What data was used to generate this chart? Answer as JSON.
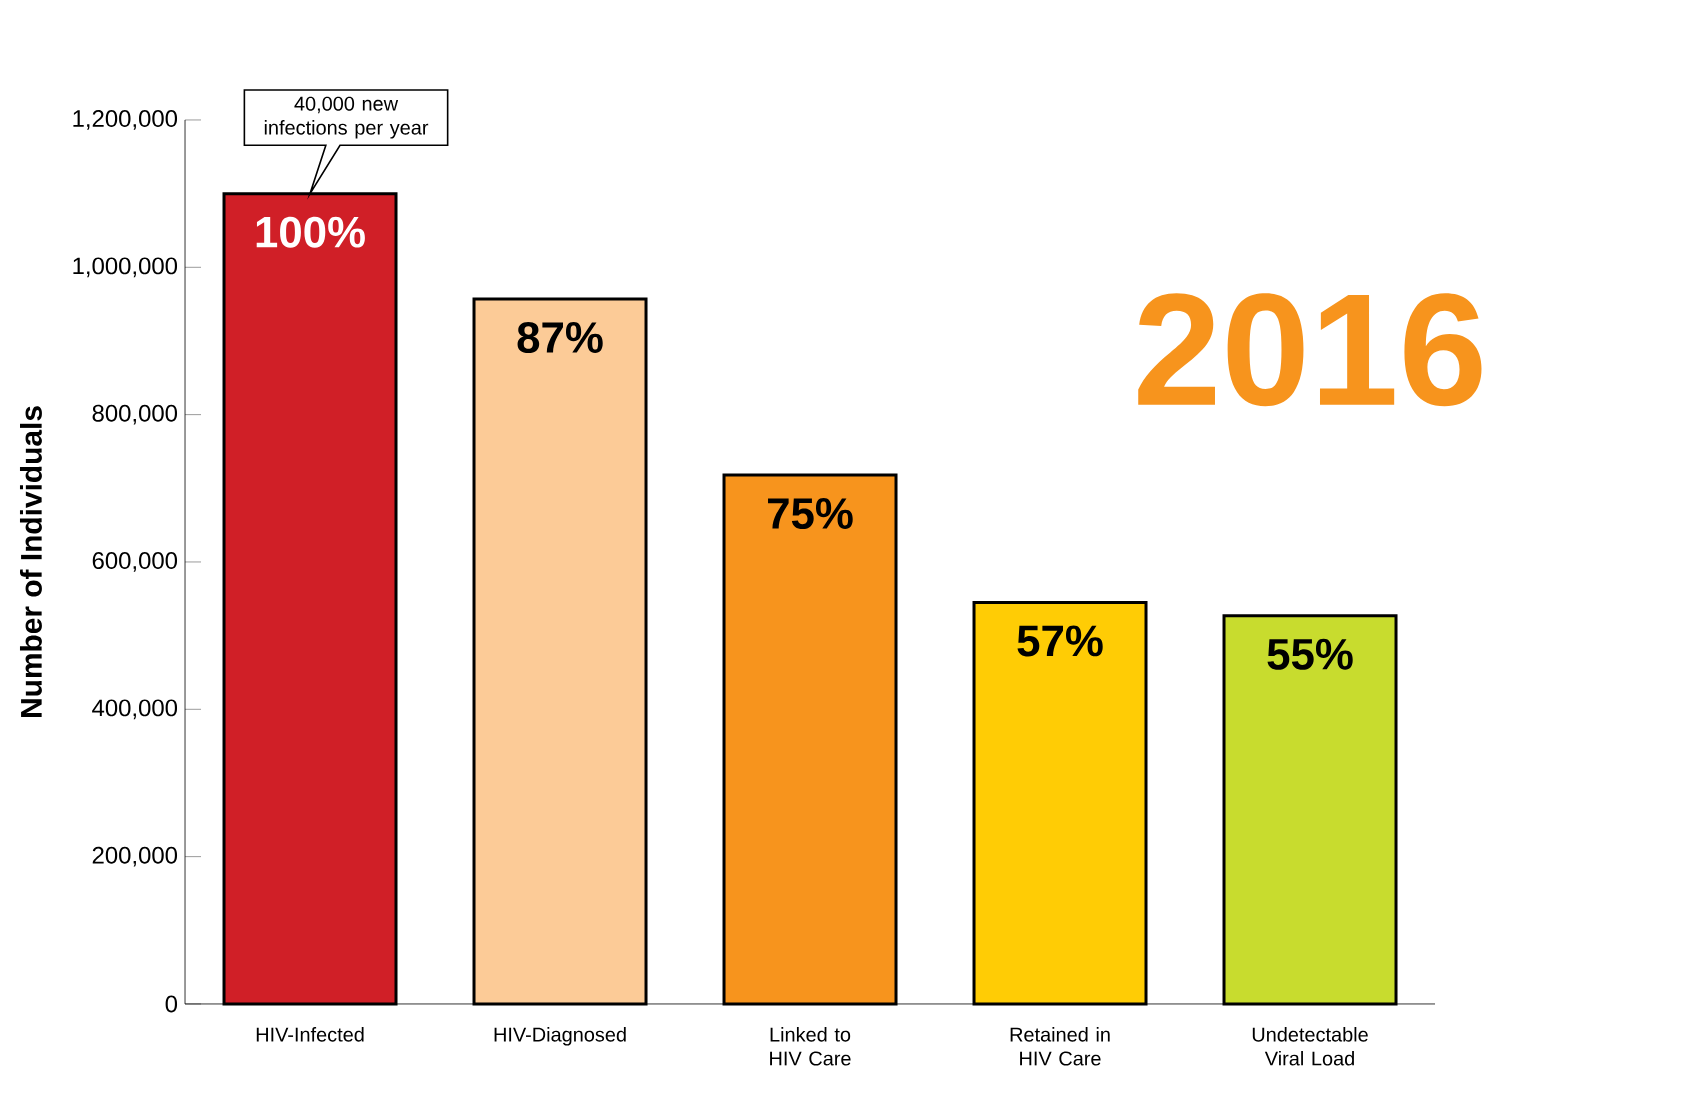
{
  "chart_data": {
    "type": "bar",
    "title": "2016",
    "ylabel": "Number of Individuals",
    "categories": [
      "HIV-Infected",
      "HIV-Diagnosed",
      "Linked to HIV Care",
      "Retained in HIV Care",
      "Undetectable Viral Load"
    ],
    "values": [
      1100000,
      957000,
      718000,
      545000,
      527000
    ],
    "colors": [
      "#d01f27",
      "#fccb97",
      "#f7941d",
      "#ffcc05",
      "#c8dc2e"
    ],
    "ylim": [
      0,
      1200000
    ],
    "yticks": [
      0,
      {
        "value": 200000,
        "label": "200,000"
      },
      {
        "value": 400000,
        "label": "400,000"
      },
      {
        "value": 600000,
        "label": "600,000"
      },
      {
        "value": 800000,
        "label": "800,000"
      },
      {
        "value": 1000000,
        "label": "1,000,000"
      },
      {
        "value": 1200000,
        "label": "1,200,000"
      }
    ],
    "annotations": [
      {
        "text": "40,000 new infections per year",
        "x": "HIV-Infected",
        "y": 1100000
      },
      {
        "text": "100%",
        "x": "HIV-Infected",
        "y": 1100000
      },
      {
        "text": "87%",
        "x": "HIV-Diagnosed",
        "y": 957000
      },
      {
        "text": "75%",
        "x": "Linked to HIV Care",
        "y": 718000
      },
      {
        "text": "57%",
        "x": "Retained in HIV Care",
        "y": 545000
      },
      {
        "text": "55%",
        "x": "Undetectable Viral Load",
        "y": 527000
      }
    ]
  }
}
